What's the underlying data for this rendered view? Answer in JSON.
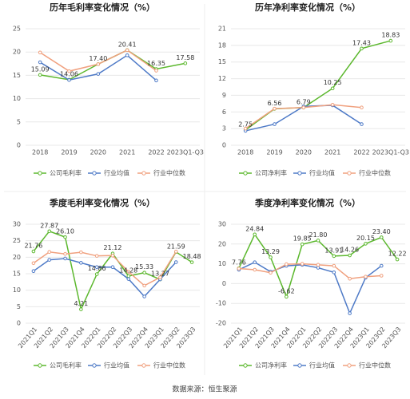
{
  "chart_data": [
    {
      "type": "line",
      "title": "历年毛利率变化情况（%）",
      "categories": [
        "2018",
        "2019",
        "2020",
        "2021",
        "2022",
        "2023Q1-Q3"
      ],
      "ylim": [
        0,
        25
      ],
      "yticks": [
        0,
        5,
        10,
        15,
        20,
        25
      ],
      "grid": true,
      "legend": "bottom",
      "series": [
        {
          "name": "公司毛利率",
          "color": "#5cb82e",
          "values": [
            15.09,
            14.06,
            17.4,
            20.41,
            16.35,
            17.58
          ],
          "value_labels": [
            "15.09",
            "14.06",
            "17.40",
            "20.41",
            "16.35",
            "17.58"
          ]
        },
        {
          "name": "行业均值",
          "color": "#4e7ac7",
          "values": [
            17.8,
            14.0,
            15.3,
            19.3,
            13.9,
            null
          ]
        },
        {
          "name": "行业中位数",
          "color": "#f0a07e",
          "values": [
            19.9,
            15.9,
            17.4,
            20.4,
            16.0,
            null
          ]
        }
      ]
    },
    {
      "type": "line",
      "title": "历年净利率变化情况（%）",
      "categories": [
        "2018",
        "2019",
        "2020",
        "2021",
        "2022",
        "2023Q1-Q3"
      ],
      "ylim": [
        0,
        21
      ],
      "yticks": [
        0,
        3,
        6,
        9,
        12,
        15,
        18,
        21
      ],
      "grid": true,
      "legend": "bottom",
      "series": [
        {
          "name": "公司净利率",
          "color": "#5cb82e",
          "values": [
            2.75,
            6.56,
            6.79,
            10.25,
            17.43,
            18.83
          ]
        },
        {
          "name": "行业均值",
          "color": "#4e7ac7",
          "values": [
            2.6,
            3.8,
            7.0,
            7.2,
            3.8,
            null
          ]
        },
        {
          "name": "行业中位数",
          "color": "#f0a07e",
          "values": [
            3.0,
            6.6,
            6.8,
            7.3,
            6.8,
            null
          ]
        }
      ]
    },
    {
      "type": "line",
      "title": "季度毛利率变化情况（%）",
      "categories": [
        "2021Q1",
        "2021Q2",
        "2021Q3",
        "2021Q4",
        "2022Q1",
        "2022Q2",
        "2022Q3",
        "2022Q4",
        "2023Q1",
        "2023Q2",
        "2023Q3"
      ],
      "ylim": [
        0,
        30
      ],
      "yticks": [
        0,
        5,
        10,
        15,
        20,
        25,
        30
      ],
      "grid": true,
      "legend": "bottom",
      "series": [
        {
          "name": "公司毛利率",
          "color": "#5cb82e",
          "values": [
            21.76,
            27.87,
            26.1,
            4.21,
            14.86,
            21.12,
            14.28,
            15.33,
            13.27,
            21.59,
            18.48
          ],
          "value_labels": [
            "21.76",
            "27.87",
            "26.10",
            "4.21",
            "14.86",
            "21.12",
            "14.28",
            "15.33",
            "13.27",
            "21.59",
            "18.48"
          ]
        },
        {
          "name": "行业均值",
          "color": "#4e7ac7",
          "values": [
            15.8,
            19.2,
            19.6,
            18.3,
            17.0,
            17.0,
            13.4,
            8.1,
            13.3,
            18.5,
            null
          ]
        },
        {
          "name": "行业中位数",
          "color": "#f0a07e",
          "values": [
            18.2,
            21.6,
            21.0,
            21.5,
            20.4,
            20.5,
            15.6,
            11.4,
            13.9,
            21.7,
            null
          ]
        }
      ]
    },
    {
      "type": "line",
      "title": "季度净利率变化情况（%）",
      "categories": [
        "2021Q1",
        "2021Q2",
        "2021Q3",
        "2021Q4",
        "2022Q1",
        "2022Q2",
        "2022Q3",
        "2022Q4",
        "2023Q1",
        "2023Q2",
        "2023Q3"
      ],
      "ylim": [
        -20,
        30
      ],
      "yticks": [
        -20,
        -10,
        0,
        10,
        20,
        30
      ],
      "grid": true,
      "legend": "bottom",
      "series": [
        {
          "name": "公司净利率",
          "color": "#5cb82e",
          "values": [
            7.76,
            24.84,
            13.29,
            -6.62,
            19.85,
            21.8,
            13.91,
            14.26,
            20.15,
            23.4,
            12.22
          ],
          "value_labels": [
            "7.76",
            "24.84",
            "13.29",
            "-6.62",
            "19.85",
            "21.80",
            "13.91",
            "14.26",
            "20.15",
            "23.40",
            "12.22"
          ]
        },
        {
          "name": "行业均值",
          "color": "#4e7ac7",
          "values": [
            7.0,
            10.8,
            6.0,
            9.0,
            9.5,
            8.0,
            5.7,
            -15.0,
            3.0,
            9.0,
            null
          ]
        },
        {
          "name": "行业中位数",
          "color": "#f0a07e",
          "values": [
            7.6,
            7.0,
            5.5,
            9.8,
            10.0,
            9.5,
            9.0,
            2.5,
            3.5,
            4.0,
            null
          ]
        }
      ]
    }
  ],
  "source": "数据来源：恒生聚源"
}
